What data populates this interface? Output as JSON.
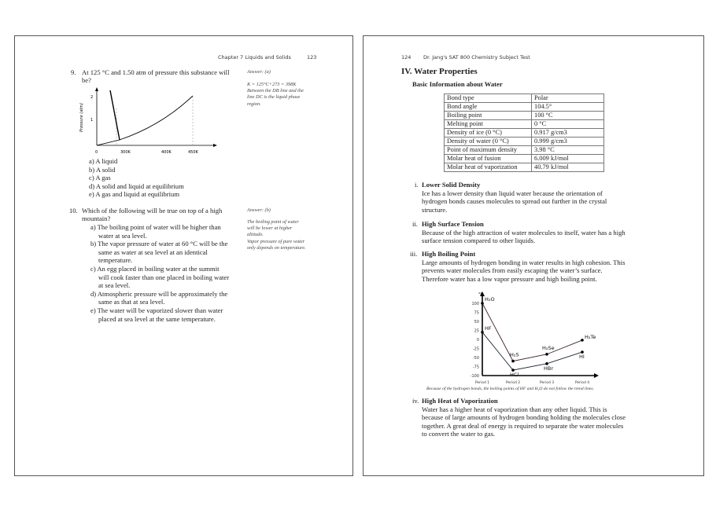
{
  "left_page": {
    "header": {
      "chapter": "Chapter 7  Liquids and Solids",
      "page_number": "123"
    },
    "q9": {
      "number": "9.",
      "text_line1": "At 125 °C and 1.50 atm of pressure this substance will",
      "text_line2": "be?",
      "answer": "Answer: (a)",
      "explanation": [
        "K = 125°C+273 = 398K",
        "Between the DB line and the",
        "line DC is the liquid phase",
        "region."
      ],
      "figure": {
        "ylabel": "Pressure (atm)",
        "yticks": [
          "2",
          "1"
        ],
        "xticks": [
          "0",
          "300K",
          "400K",
          "450K"
        ]
      },
      "options": [
        "a) A liquid",
        "b) A solid",
        "c) A gas",
        "d) A solid and liquid at equilibrium",
        "e) A gas and liquid at equilibrium"
      ]
    },
    "q10": {
      "number": "10.",
      "text_line1": "Which of the following will be true on top of a high",
      "text_line2": "mountain?",
      "answer": "Answer: (b)",
      "explanation": [
        "The boiling point of water",
        "will be lower at higher",
        "altitude.",
        "Vapor pressure of pure water",
        "only depends on temperature."
      ],
      "options": [
        [
          "a) The boiling point of water will be higher than",
          "water at sea level."
        ],
        [
          "b) The vapor pressure of water at 60 °C will be the",
          "same as water at sea level at an identical",
          "temperature."
        ],
        [
          "c) An egg placed in boiling water at the summit",
          "will cook faster than one placed in boiling water",
          "at sea level."
        ],
        [
          "d) Atmospheric pressure will be approximately the",
          "same as that at sea level."
        ],
        [
          "e) The water will be vaporized slower than water",
          "placed at sea level at the same temperature."
        ]
      ]
    }
  },
  "right_page": {
    "header": {
      "page_number": "124",
      "book_title": "Dr. Jang's SAT 800 Chemistry Subject Test"
    },
    "title": "IV. Water Properties",
    "subtitle": "Basic Information about Water",
    "table": [
      [
        "Bond type",
        "Polar"
      ],
      [
        "Bond angle",
        "104.5°"
      ],
      [
        "Boiling point",
        "100 °C"
      ],
      [
        "Melting point",
        "0 °C"
      ],
      [
        "Density of ice (0 °C)",
        "0.917 g/cm3"
      ],
      [
        "Density of water (0 °C)",
        "0.999 g/cm3"
      ],
      [
        "Point of maximum density",
        "3.98 °C"
      ],
      [
        "Molar heat of fusion",
        "6.009 kJ/mol"
      ],
      [
        "Molar heat of vaporization",
        "40.79 kJ/mol"
      ]
    ],
    "sections": [
      {
        "num": "i.",
        "title": "Lower Solid Density",
        "lines": [
          "Ice has a lower density than liquid water because the orientation of",
          "hydrogen bonds causes molecules to spread out further in the crystal",
          "structure."
        ]
      },
      {
        "num": "ii.",
        "title": "High Surface Tension",
        "lines": [
          "Because of the high attraction of water molecules to itself, water has a high",
          "surface tension compared to other liquids."
        ]
      },
      {
        "num": "iii.",
        "title": "High Boiling Point",
        "lines": [
          "Large amounts of hydrogen bonding in water results in high cohesion. This",
          "prevents water molecules from easily escaping the water’s surface.",
          "Therefore water has a low vapor pressure and high boiling point."
        ]
      },
      {
        "num": "iv.",
        "title": "High Heat of Vaporization",
        "lines": [
          "Water has a higher heat of vaporization than any other liquid. This is",
          "because of large amounts of hydrogen bonding holding the molecules close",
          "together. A great deal of energy is required to separate the water molecules",
          "to convert the water to gas."
        ]
      }
    ],
    "chart_caption": "Because of the hydrogen bonds, the boiling points of HF and H₂O do not follow the trend lines."
  },
  "chart_data": {
    "type": "line",
    "ylabel": "°C",
    "ylim": [
      -100,
      100
    ],
    "yticks": [
      "100",
      "75",
      "50",
      "25",
      "0",
      "-25",
      "-50",
      "-75",
      "-100"
    ],
    "categories": [
      "Period 1",
      "Period 2",
      "Period 3",
      "Period 4"
    ],
    "series": [
      {
        "labels": [
          "H₂O",
          "H₂S",
          "H₂Se",
          "H₂Te"
        ],
        "values": [
          100,
          -60,
          -41,
          -2
        ]
      },
      {
        "labels": [
          "HF",
          "HCl",
          "HBr",
          "HI"
        ],
        "values": [
          20,
          -85,
          -67,
          -35
        ]
      }
    ]
  }
}
